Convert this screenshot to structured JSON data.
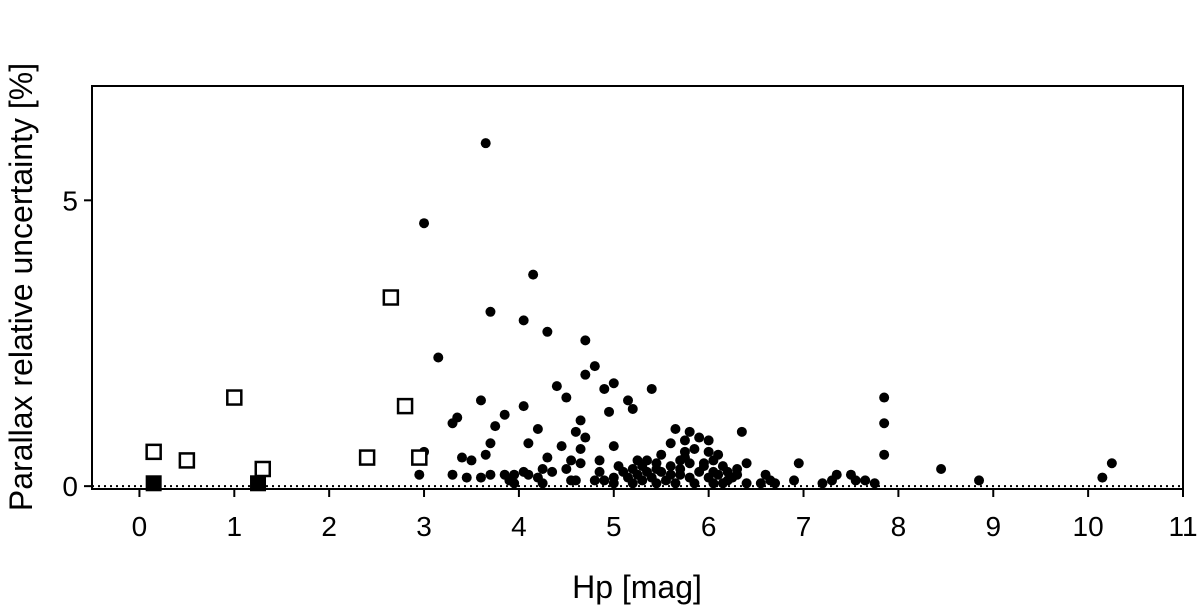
{
  "chart_data": {
    "type": "scatter",
    "title": "",
    "xlabel": "Hp [mag]",
    "ylabel": "Parallax relative uncertainty [%]",
    "xlim": [
      -0.5,
      11
    ],
    "ylim": [
      -0.05,
      7
    ],
    "x_ticks": [
      0,
      1,
      2,
      3,
      4,
      5,
      6,
      7,
      8,
      9,
      10,
      11
    ],
    "y_ticks": [
      0,
      5
    ],
    "grid": false,
    "legend": "none",
    "reference_line": {
      "y": 0,
      "style": "dotted"
    },
    "series": [
      {
        "marker": "filled-circle",
        "color": "#000000",
        "points": [
          [
            3.65,
            6.0
          ],
          [
            3.0,
            4.6
          ],
          [
            4.15,
            3.7
          ],
          [
            3.7,
            3.05
          ],
          [
            4.05,
            2.9
          ],
          [
            4.3,
            2.7
          ],
          [
            4.7,
            2.55
          ],
          [
            3.15,
            2.25
          ],
          [
            4.8,
            2.1
          ],
          [
            4.7,
            1.95
          ],
          [
            4.9,
            1.7
          ],
          [
            5.0,
            1.8
          ],
          [
            5.4,
            1.7
          ],
          [
            4.4,
            1.75
          ],
          [
            4.5,
            1.55
          ],
          [
            5.15,
            1.5
          ],
          [
            5.2,
            1.35
          ],
          [
            4.95,
            1.3
          ],
          [
            4.05,
            1.4
          ],
          [
            3.85,
            1.25
          ],
          [
            3.6,
            1.5
          ],
          [
            3.35,
            1.2
          ],
          [
            3.3,
            1.1
          ],
          [
            3.75,
            1.05
          ],
          [
            4.2,
            1.0
          ],
          [
            4.65,
            1.15
          ],
          [
            4.6,
            0.95
          ],
          [
            4.7,
            0.85
          ],
          [
            3.7,
            0.75
          ],
          [
            4.1,
            0.75
          ],
          [
            4.45,
            0.7
          ],
          [
            4.65,
            0.65
          ],
          [
            5.0,
            0.7
          ],
          [
            5.65,
            1.0
          ],
          [
            5.8,
            0.95
          ],
          [
            5.9,
            0.85
          ],
          [
            6.0,
            0.8
          ],
          [
            6.35,
            0.95
          ],
          [
            5.75,
            0.8
          ],
          [
            5.6,
            0.75
          ],
          [
            5.85,
            0.65
          ],
          [
            5.5,
            0.55
          ],
          [
            3.0,
            0.6
          ],
          [
            2.95,
            0.5
          ],
          [
            3.4,
            0.5
          ],
          [
            3.5,
            0.45
          ],
          [
            3.65,
            0.55
          ],
          [
            4.3,
            0.5
          ],
          [
            4.55,
            0.45
          ],
          [
            4.25,
            0.3
          ],
          [
            4.05,
            0.25
          ],
          [
            3.85,
            0.2
          ],
          [
            3.7,
            0.2
          ],
          [
            3.6,
            0.15
          ],
          [
            3.3,
            0.2
          ],
          [
            2.95,
            0.2
          ],
          [
            3.45,
            0.15
          ],
          [
            3.9,
            0.1
          ],
          [
            4.2,
            0.15
          ],
          [
            4.35,
            0.25
          ],
          [
            4.5,
            0.3
          ],
          [
            4.65,
            0.4
          ],
          [
            4.85,
            0.45
          ],
          [
            4.85,
            0.25
          ],
          [
            4.8,
            0.1
          ],
          [
            5.0,
            0.15
          ],
          [
            5.1,
            0.25
          ],
          [
            5.2,
            0.3
          ],
          [
            5.3,
            0.35
          ],
          [
            5.35,
            0.45
          ],
          [
            5.45,
            0.4
          ],
          [
            5.6,
            0.35
          ],
          [
            5.7,
            0.45
          ],
          [
            5.75,
            0.5
          ],
          [
            5.8,
            0.4
          ],
          [
            5.95,
            0.4
          ],
          [
            6.05,
            0.45
          ],
          [
            6.15,
            0.35
          ],
          [
            6.2,
            0.25
          ],
          [
            6.25,
            0.15
          ],
          [
            6.3,
            0.3
          ],
          [
            6.4,
            0.4
          ],
          [
            6.1,
            0.2
          ],
          [
            6.0,
            0.15
          ],
          [
            5.9,
            0.25
          ],
          [
            5.8,
            0.15
          ],
          [
            5.7,
            0.2
          ],
          [
            5.55,
            0.1
          ],
          [
            5.4,
            0.15
          ],
          [
            5.3,
            0.1
          ],
          [
            5.25,
            0.2
          ],
          [
            5.15,
            0.15
          ],
          [
            5.0,
            0.05
          ],
          [
            4.9,
            0.1
          ],
          [
            5.5,
            0.25
          ],
          [
            5.6,
            0.2
          ],
          [
            5.35,
            0.25
          ],
          [
            5.7,
            0.3
          ],
          [
            5.95,
            0.35
          ],
          [
            6.05,
            0.25
          ],
          [
            6.2,
            0.1
          ],
          [
            6.4,
            0.05
          ],
          [
            6.6,
            0.2
          ],
          [
            6.65,
            0.1
          ],
          [
            6.7,
            0.05
          ],
          [
            6.9,
            0.1
          ],
          [
            6.95,
            0.4
          ],
          [
            7.2,
            0.05
          ],
          [
            7.3,
            0.1
          ],
          [
            7.35,
            0.2
          ],
          [
            7.5,
            0.2
          ],
          [
            7.55,
            0.1
          ],
          [
            7.65,
            0.1
          ],
          [
            7.75,
            0.05
          ],
          [
            7.85,
            1.55
          ],
          [
            7.85,
            1.1
          ],
          [
            7.85,
            0.55
          ],
          [
            8.45,
            0.3
          ],
          [
            8.85,
            0.1
          ],
          [
            10.15,
            0.15
          ],
          [
            10.25,
            0.4
          ],
          [
            5.2,
            0.05
          ],
          [
            5.45,
            0.05
          ],
          [
            5.65,
            0.05
          ],
          [
            5.85,
            0.05
          ],
          [
            6.05,
            0.05
          ],
          [
            6.15,
            0.05
          ],
          [
            6.55,
            0.05
          ],
          [
            4.25,
            0.05
          ],
          [
            4.55,
            0.1
          ],
          [
            3.95,
            0.05
          ],
          [
            4.6,
            0.1
          ],
          [
            5.05,
            0.35
          ],
          [
            5.25,
            0.45
          ],
          [
            5.45,
            0.3
          ],
          [
            6.1,
            0.55
          ],
          [
            6.3,
            0.2
          ],
          [
            5.75,
            0.6
          ],
          [
            6.0,
            0.6
          ],
          [
            3.95,
            0.2
          ],
          [
            4.1,
            0.2
          ]
        ]
      },
      {
        "marker": "open-square",
        "color": "#000000",
        "points": [
          [
            0.15,
            0.6
          ],
          [
            0.5,
            0.45
          ],
          [
            1.0,
            1.55
          ],
          [
            1.3,
            0.3
          ],
          [
            2.4,
            0.5
          ],
          [
            2.65,
            3.3
          ],
          [
            2.8,
            1.4
          ],
          [
            2.95,
            0.5
          ]
        ]
      },
      {
        "marker": "filled-square",
        "color": "#000000",
        "points": [
          [
            0.15,
            0.05
          ],
          [
            1.25,
            0.05
          ]
        ]
      }
    ]
  }
}
